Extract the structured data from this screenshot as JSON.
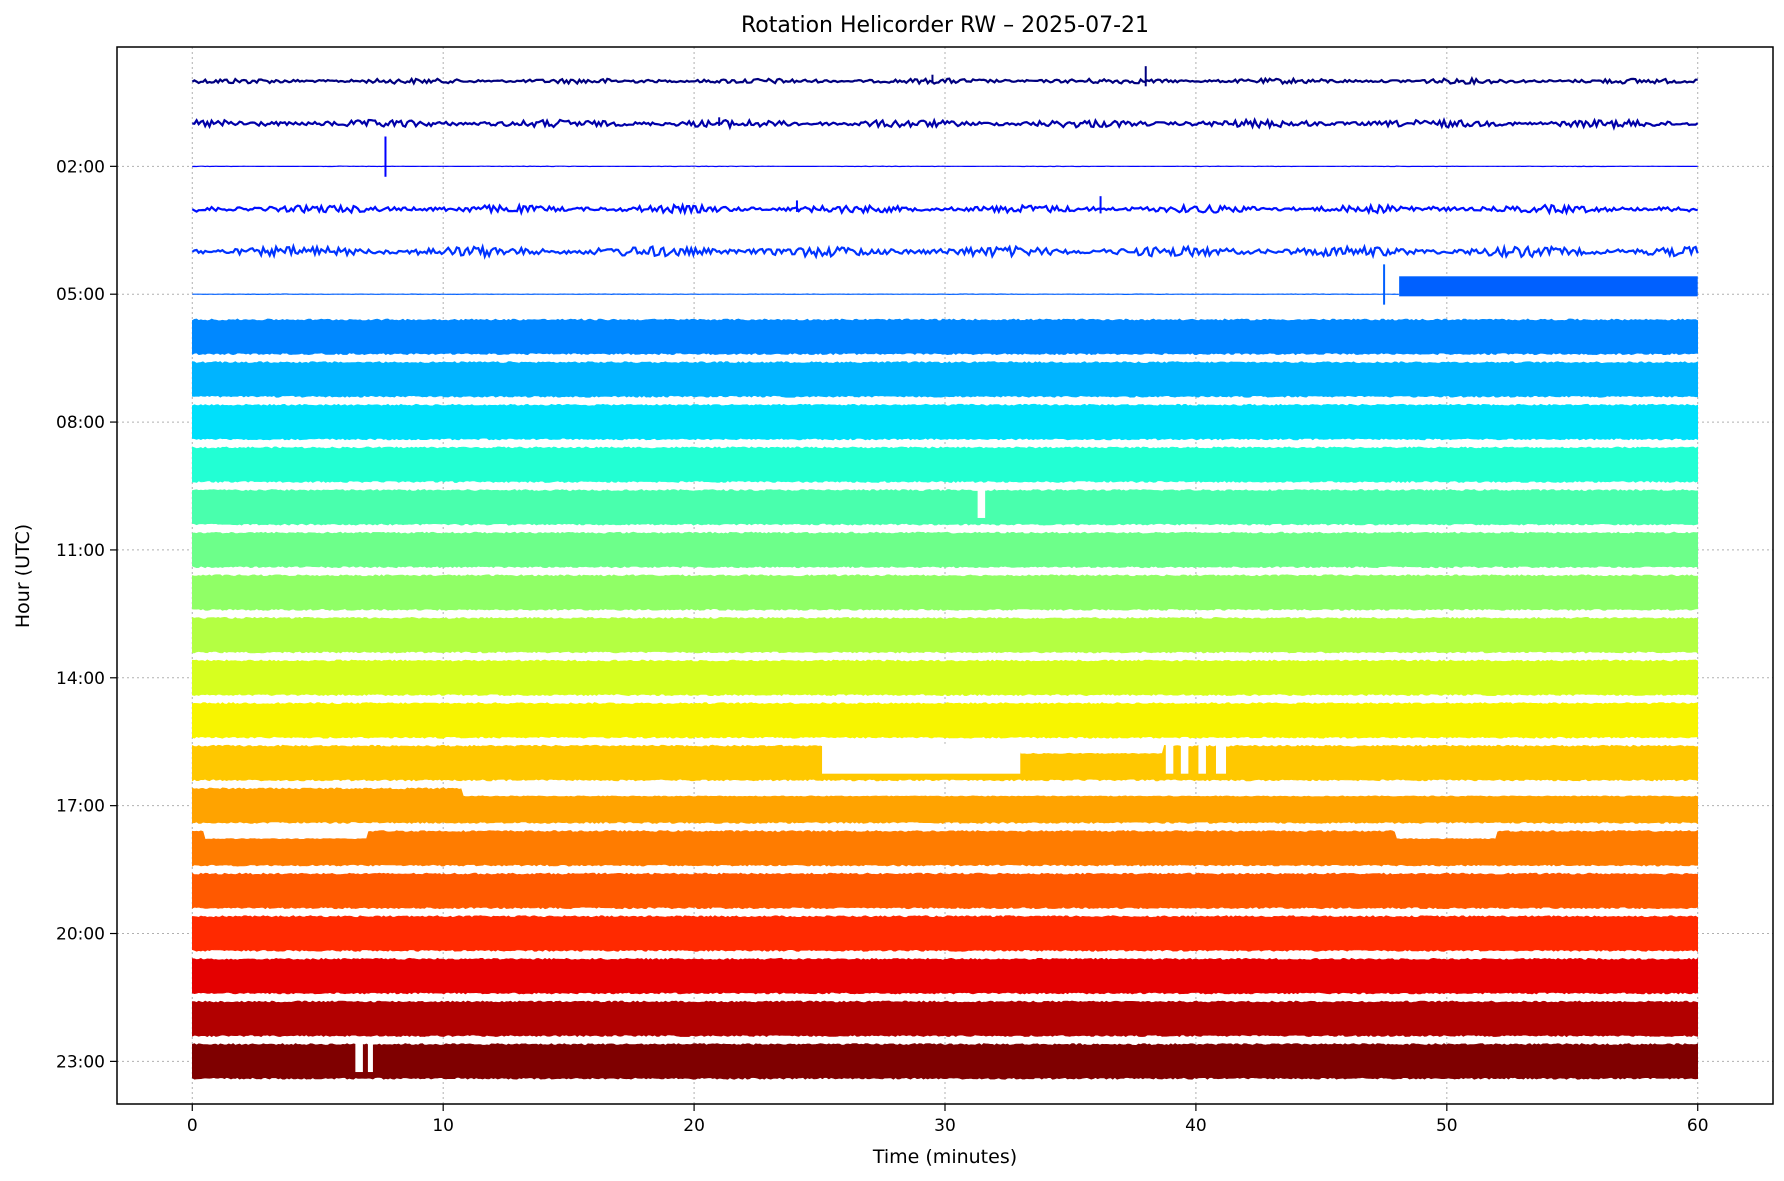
{
  "chart_data": {
    "type": "line",
    "title": "Rotation Helicorder RW – 2025-07-21",
    "xlabel": "Time (minutes)",
    "ylabel": "Hour (UTC)",
    "xlim": [
      -3,
      63
    ],
    "ylim": [
      24.0,
      -0.8
    ],
    "xticks": [
      0,
      10,
      20,
      30,
      40,
      50,
      60
    ],
    "yticks": [
      {
        "hour": 2,
        "label": "02:00"
      },
      {
        "hour": 5,
        "label": "05:00"
      },
      {
        "hour": 8,
        "label": "08:00"
      },
      {
        "hour": 11,
        "label": "11:00"
      },
      {
        "hour": 14,
        "label": "14:00"
      },
      {
        "hour": 17,
        "label": "17:00"
      },
      {
        "hour": 20,
        "label": "20:00"
      },
      {
        "hour": 23,
        "label": "23:00"
      }
    ],
    "grid": true,
    "legend": "none",
    "series": [
      {
        "hour": 0,
        "color": "#00007f",
        "amplitude": 0.06,
        "spikes": [
          {
            "minute": 29.5,
            "size": 0.15
          },
          {
            "minute": 38,
            "size": 0.35
          }
        ]
      },
      {
        "hour": 1,
        "color": "#0000a8",
        "amplitude": 0.09,
        "spikes": [
          {
            "minute": 21,
            "size": 0.15
          }
        ]
      },
      {
        "hour": 2,
        "color": "#0000ff",
        "amplitude": 0.005,
        "spikes": [
          {
            "minute": 7.7,
            "size": 0.7
          }
        ]
      },
      {
        "hour": 3,
        "color": "#0010ff",
        "amplitude": 0.09,
        "spikes": [
          {
            "minute": 24.1,
            "size": 0.2
          },
          {
            "minute": 36.2,
            "size": 0.3
          }
        ]
      },
      {
        "hour": 4,
        "color": "#0033ff",
        "amplitude": 0.12,
        "spikes": []
      },
      {
        "hour": 5,
        "color": "#0060ff",
        "amplitude": 0.005,
        "spikes": [
          {
            "minute": 47.5,
            "size": 0.7
          }
        ],
        "block_start": 48.1
      },
      {
        "hour": 6,
        "color": "#0088ff",
        "amplitude": 0.42,
        "spikes": []
      },
      {
        "hour": 7,
        "color": "#00b4ff",
        "amplitude": 0.42,
        "spikes": []
      },
      {
        "hour": 8,
        "color": "#00e0fb",
        "amplitude": 0.42,
        "spikes": []
      },
      {
        "hour": 9,
        "color": "#22ffd4",
        "amplitude": 0.42,
        "spikes": []
      },
      {
        "hour": 10,
        "color": "#49ffad",
        "amplitude": 0.42,
        "spikes": [],
        "gaps": [
          [
            31.3,
            31.6
          ]
        ]
      },
      {
        "hour": 11,
        "color": "#6dff8a",
        "amplitude": 0.42,
        "spikes": []
      },
      {
        "hour": 12,
        "color": "#90ff66",
        "amplitude": 0.42,
        "spikes": []
      },
      {
        "hour": 13,
        "color": "#b4ff42",
        "amplitude": 0.42,
        "spikes": []
      },
      {
        "hour": 14,
        "color": "#d7ff1f",
        "amplitude": 0.42,
        "spikes": []
      },
      {
        "hour": 15,
        "color": "#f8f500",
        "amplitude": 0.42,
        "spikes": []
      },
      {
        "hour": 16,
        "color": "#ffc800",
        "amplitude": 0.42,
        "spikes": [],
        "gaps": [
          [
            25.1,
            33
          ],
          [
            38.8,
            39.1
          ],
          [
            39.4,
            39.7
          ],
          [
            40.1,
            40.4
          ],
          [
            40.8,
            41.2
          ]
        ],
        "notch": [
          [
            33,
            38.7
          ]
        ]
      },
      {
        "hour": 17,
        "color": "#ffa300",
        "amplitude": 0.42,
        "spikes": [],
        "notch": [
          [
            10.8,
            60
          ]
        ]
      },
      {
        "hour": 18,
        "color": "#ff7c00",
        "amplitude": 0.42,
        "spikes": [],
        "notch": [
          [
            0.5,
            7.0
          ],
          [
            48,
            52
          ]
        ]
      },
      {
        "hour": 19,
        "color": "#ff5900",
        "amplitude": 0.42,
        "spikes": []
      },
      {
        "hour": 20,
        "color": "#ff2900",
        "amplitude": 0.42,
        "spikes": []
      },
      {
        "hour": 21,
        "color": "#e40000",
        "amplitude": 0.42,
        "spikes": []
      },
      {
        "hour": 22,
        "color": "#b20000",
        "amplitude": 0.42,
        "spikes": []
      },
      {
        "hour": 23,
        "color": "#7f0000",
        "amplitude": 0.42,
        "spikes": [],
        "gaps": [
          [
            6.5,
            6.8
          ],
          [
            7.0,
            7.2
          ]
        ]
      }
    ]
  }
}
